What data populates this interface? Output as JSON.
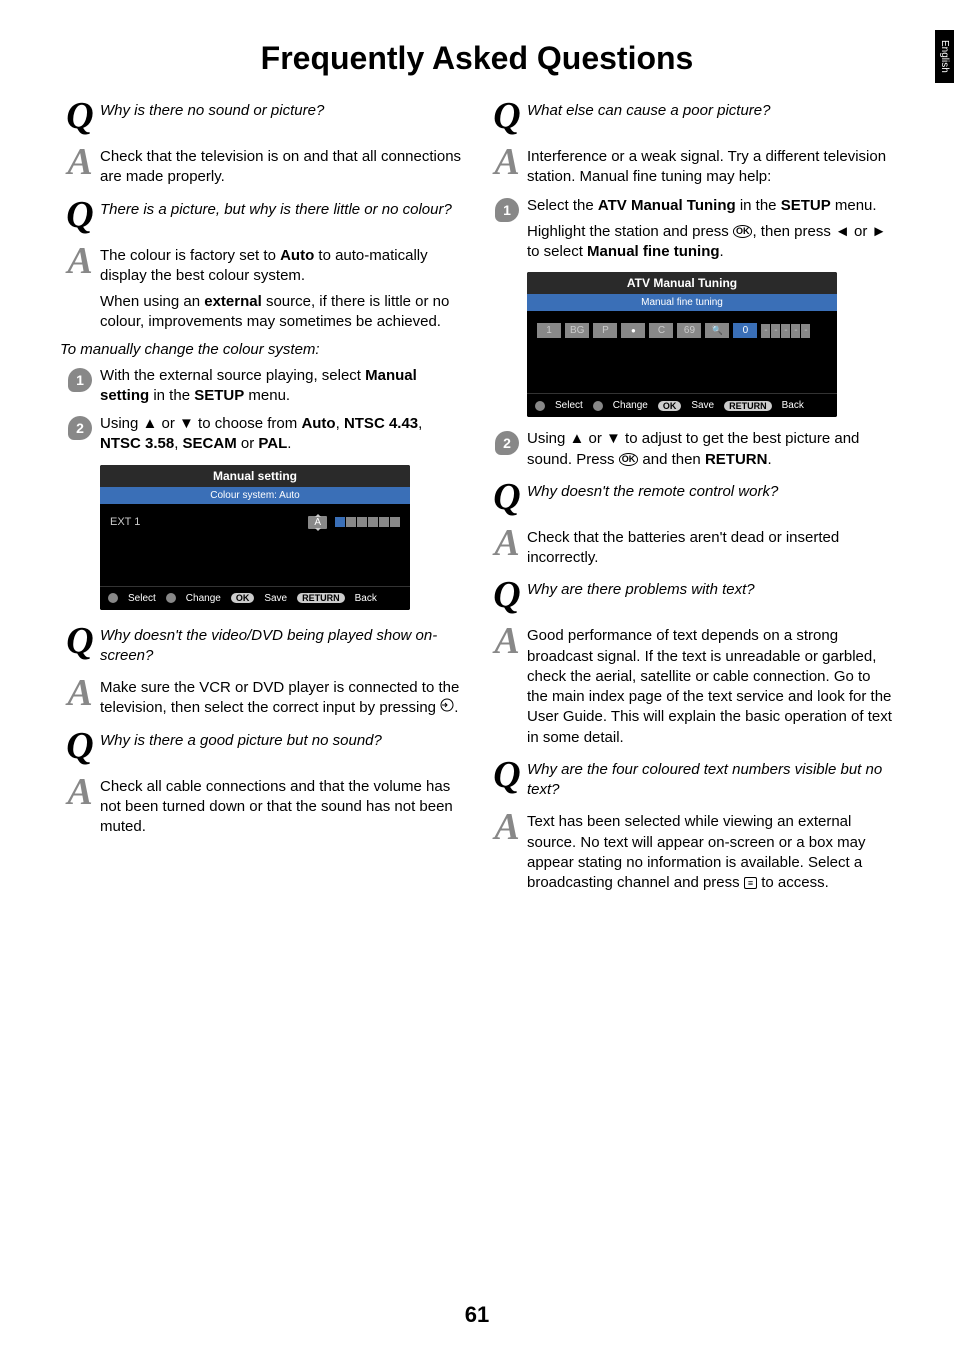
{
  "side_tab": "English",
  "title": "Frequently Asked Questions",
  "page_number": "61",
  "left_col": {
    "q1": "Why is there no sound or picture?",
    "a1": "Check that the television is on and that all connections are made properly.",
    "q2": "There is a picture, but why is there little or no colour?",
    "a2a": "The colour is factory set to <b>Auto</b> to auto-matically display the best colour system.",
    "a2b": "When using an <b>external</b> source, if there is little or no colour, improvements may sometimes be achieved.",
    "manual_intro": "To manually change the colour system:",
    "step1": "With the external source playing, select <b>Manual setting</b> in the <b>SETUP</b> menu.",
    "step2": "Using ▲ or ▼ to choose from <b>Auto</b>, <b>NTSC 4.43</b>, <b>NTSC 3.58</b>, <b>SECAM</b> or <b>PAL</b>.",
    "osd1": {
      "title": "Manual setting",
      "subtitle": "Colour system: Auto",
      "ext": "EXT 1",
      "chip": "A",
      "footer_select": "Select",
      "footer_change": "Change",
      "footer_ok": "OK",
      "footer_save": "Save",
      "footer_return": "RETURN",
      "footer_back": "Back"
    },
    "q3": "Why doesn't the video/DVD being played show on-screen?",
    "a3": "Make sure the VCR or DVD player is connected to the television, then select the correct input by pressing ",
    "q4": "Why is there a good picture but no sound?",
    "a4": "Check all cable connections and that the volume has not been turned down or that the sound has not been muted."
  },
  "right_col": {
    "q5": "What else can cause a poor picture?",
    "a5": "Interference or a weak signal. Try a different television station. Manual fine tuning may help:",
    "step1a": "Select the <b>ATV Manual Tuning</b> in the <b>SETUP</b> menu.",
    "step1b": "Highlight the station and press <span class='ok-icon'>OK</span>, then press ◄ or ► to select <b>Manual fine tuning</b>.",
    "osd2": {
      "title": "ATV Manual Tuning",
      "subtitle": "Manual fine tuning",
      "cells": [
        "1",
        "BG",
        "P",
        "",
        "C",
        "69",
        "",
        "0"
      ],
      "eye_idx": 3,
      "icon_idx": 6,
      "num_idx": 7,
      "footer_select": "Select",
      "footer_change": "Change",
      "footer_ok": "OK",
      "footer_save": "Save",
      "footer_return": "RETURN",
      "footer_back": "Back"
    },
    "step2": "Using ▲ or ▼ to adjust to get the best picture and sound. Press <span class='ok-icon'>OK</span> and then <b>RETURN</b>.",
    "q6": "Why doesn't the remote control work?",
    "a6": "Check that the batteries aren't dead or inserted incorrectly.",
    "q7": "Why are there problems with text?",
    "a7": "Good performance of text depends on a strong broadcast signal. If the text is unreadable or garbled, check the aerial, satellite or cable connection. Go to the main index page of the text service and look for the User Guide. This will explain the basic operation of text in some detail.",
    "q8": "Why are the four coloured text numbers visible but no text?",
    "a8": "Text has been selected while viewing an external source. No text will appear on-screen or a box may appear stating no information is available. Select a broadcasting channel and press <span class='txt-icon'>≡</span> to access."
  }
}
